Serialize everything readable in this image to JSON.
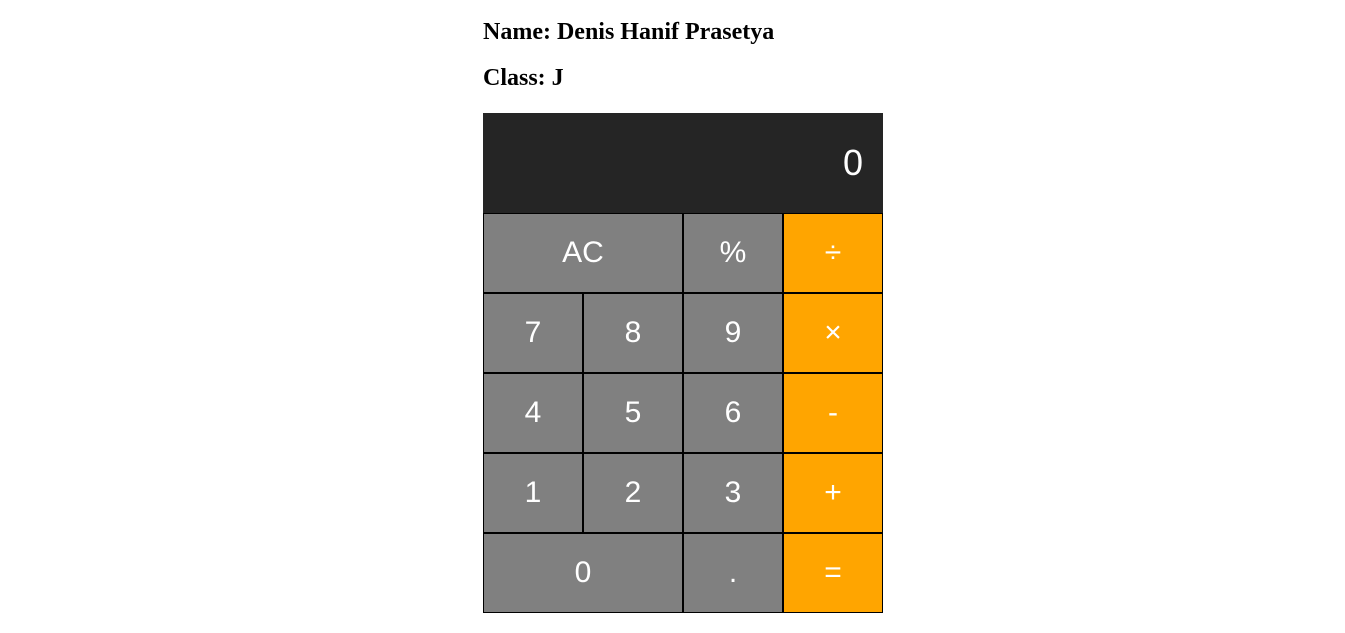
{
  "header": {
    "name_line": "Name: Denis Hanif Prasetya",
    "class_line": "Class: J"
  },
  "calculator": {
    "display_value": "0",
    "keys": {
      "clear": "AC",
      "percent": "%",
      "divide": "÷",
      "seven": "7",
      "eight": "8",
      "nine": "9",
      "multiply": "×",
      "four": "4",
      "five": "5",
      "six": "6",
      "subtract": "-",
      "one": "1",
      "two": "2",
      "three": "3",
      "add": "+",
      "zero": "0",
      "decimal": ".",
      "equals": "="
    },
    "colors": {
      "display_bg": "#252525",
      "number_key_bg": "#808080",
      "operator_key_bg": "#ffa500",
      "key_text": "#ffffff",
      "key_border": "#000000"
    }
  }
}
